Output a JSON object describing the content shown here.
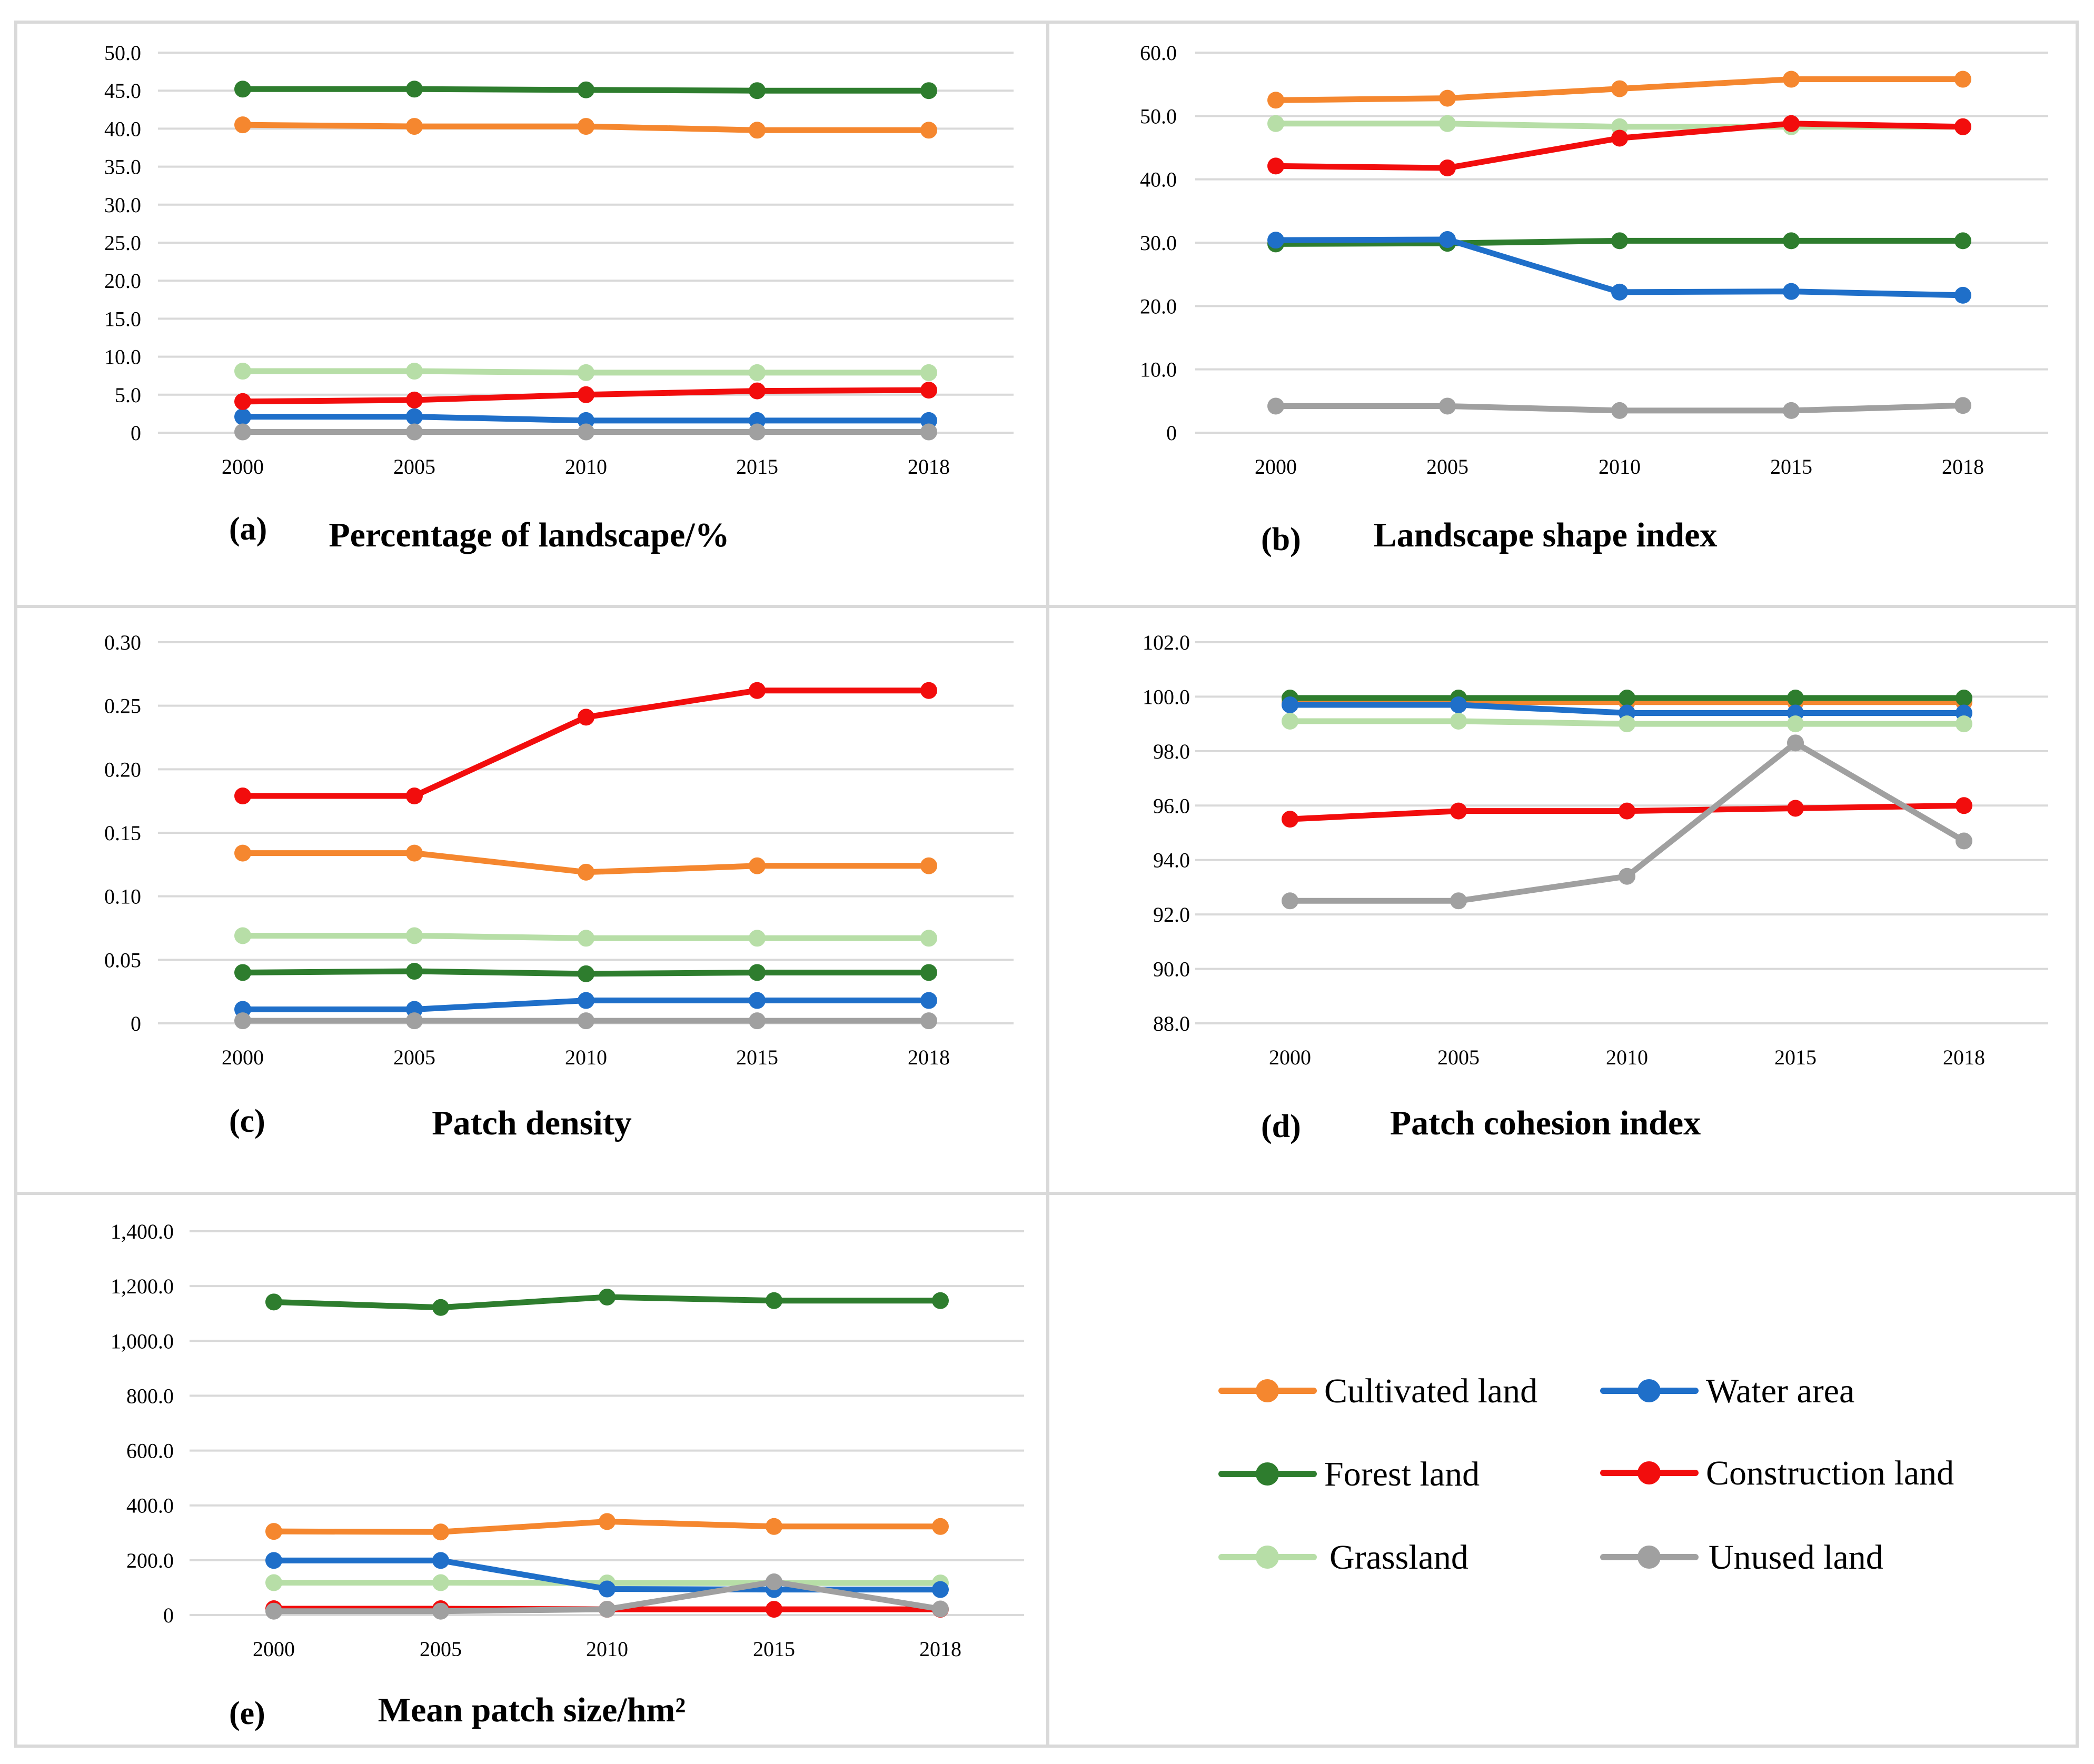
{
  "colors": {
    "cultivated": "#F5872F",
    "forest": "#2E7D2E",
    "grassland": "#B7DEA7",
    "water": "#1F6FC9",
    "construction": "#F20D0D",
    "unused": "#A0A0A0"
  },
  "legend": [
    {
      "key": "cultivated",
      "label": "Cultivated land"
    },
    {
      "key": "water",
      "label": "Water area"
    },
    {
      "key": "forest",
      "label": "Forest land"
    },
    {
      "key": "construction",
      "label": "Construction land"
    },
    {
      "key": "grassland",
      "label": "Grassland"
    },
    {
      "key": "unused",
      "label": "Unused land"
    }
  ],
  "chart_data": [
    {
      "type": "line",
      "panel_label": "(a)",
      "title": "Percentage of landscape/%",
      "categories": [
        "2000",
        "2005",
        "2010",
        "2015",
        "2018"
      ],
      "ylim": [
        0,
        50
      ],
      "yticks": [
        "50.0",
        "45.0",
        "40.0",
        "35.0",
        "30.0",
        "25.0",
        "20.0",
        "15.0",
        "10.0",
        "5.0",
        "0"
      ],
      "series": [
        {
          "key": "cultivated",
          "name": "Cultivated land",
          "values": [
            40.5,
            40.3,
            40.3,
            39.8,
            39.8
          ]
        },
        {
          "key": "forest",
          "name": "Forest land",
          "values": [
            45.2,
            45.2,
            45.1,
            45.0,
            45.0
          ]
        },
        {
          "key": "grassland",
          "name": "Grassland",
          "values": [
            8.1,
            8.1,
            7.9,
            7.9,
            7.9
          ]
        },
        {
          "key": "water",
          "name": "Water area",
          "values": [
            2.1,
            2.1,
            1.6,
            1.6,
            1.6
          ]
        },
        {
          "key": "construction",
          "name": "Construction land",
          "values": [
            4.1,
            4.3,
            5.0,
            5.5,
            5.6
          ]
        },
        {
          "key": "unused",
          "name": "Unused land",
          "values": [
            0.1,
            0.1,
            0.1,
            0.1,
            0.1
          ]
        }
      ]
    },
    {
      "type": "line",
      "panel_label": "(b)",
      "title": "Landscape shape index",
      "categories": [
        "2000",
        "2005",
        "2010",
        "2015",
        "2018"
      ],
      "ylim": [
        0,
        60
      ],
      "yticks": [
        "60.0",
        "50.0",
        "40.0",
        "30.0",
        "20.0",
        "10.0",
        "0"
      ],
      "series": [
        {
          "key": "cultivated",
          "name": "Cultivated land",
          "values": [
            52.5,
            52.8,
            54.3,
            55.8,
            55.8
          ]
        },
        {
          "key": "grassland",
          "name": "Grassland",
          "values": [
            48.8,
            48.8,
            48.3,
            48.3,
            48.3
          ]
        },
        {
          "key": "construction",
          "name": "Construction land",
          "values": [
            42.1,
            41.8,
            46.5,
            48.8,
            48.3
          ]
        },
        {
          "key": "forest",
          "name": "Forest land",
          "values": [
            29.8,
            29.9,
            30.3,
            30.3,
            30.3
          ]
        },
        {
          "key": "water",
          "name": "Water area",
          "values": [
            30.4,
            30.5,
            22.2,
            22.3,
            21.7
          ]
        },
        {
          "key": "unused",
          "name": "Unused land",
          "values": [
            4.2,
            4.2,
            3.5,
            3.5,
            4.3
          ]
        }
      ]
    },
    {
      "type": "line",
      "panel_label": "(c)",
      "title": "Patch density",
      "categories": [
        "2000",
        "2005",
        "2010",
        "2015",
        "2018"
      ],
      "ylim": [
        0,
        0.3
      ],
      "yticks": [
        "0.30",
        "0.25",
        "0.20",
        "0.15",
        "0.10",
        "0.05",
        "0"
      ],
      "series": [
        {
          "key": "construction",
          "name": "Construction land",
          "values": [
            0.179,
            0.179,
            0.241,
            0.262,
            0.262
          ]
        },
        {
          "key": "cultivated",
          "name": "Cultivated land",
          "values": [
            0.134,
            0.134,
            0.119,
            0.124,
            0.124
          ]
        },
        {
          "key": "grassland",
          "name": "Grassland",
          "values": [
            0.069,
            0.069,
            0.067,
            0.067,
            0.067
          ]
        },
        {
          "key": "forest",
          "name": "Forest land",
          "values": [
            0.04,
            0.041,
            0.039,
            0.04,
            0.04
          ]
        },
        {
          "key": "water",
          "name": "Water area",
          "values": [
            0.011,
            0.011,
            0.018,
            0.018,
            0.018
          ]
        },
        {
          "key": "unused",
          "name": "Unused land",
          "values": [
            0.002,
            0.002,
            0.002,
            0.002,
            0.002
          ]
        }
      ]
    },
    {
      "type": "line",
      "panel_label": "(d)",
      "title": "Patch cohesion index",
      "categories": [
        "2000",
        "2005",
        "2010",
        "2015",
        "2018"
      ],
      "ylim": [
        88,
        102
      ],
      "yticks": [
        "102.0",
        "100.0",
        "98.0",
        "96.0",
        "94.0",
        "92.0",
        "90.0",
        "88.0"
      ],
      "series": [
        {
          "key": "cultivated",
          "name": "Cultivated land",
          "values": [
            99.8,
            99.8,
            99.8,
            99.8,
            99.8
          ]
        },
        {
          "key": "forest",
          "name": "Forest land",
          "values": [
            99.95,
            99.95,
            99.95,
            99.95,
            99.95
          ]
        },
        {
          "key": "water",
          "name": "Water area",
          "values": [
            99.7,
            99.7,
            99.4,
            99.4,
            99.4
          ]
        },
        {
          "key": "grassland",
          "name": "Grassland",
          "values": [
            99.1,
            99.1,
            99.0,
            99.0,
            99.0
          ]
        },
        {
          "key": "construction",
          "name": "Construction land",
          "values": [
            95.5,
            95.8,
            95.8,
            95.9,
            96.0
          ]
        },
        {
          "key": "unused",
          "name": "Unused land",
          "values": [
            92.5,
            92.5,
            93.4,
            98.3,
            94.7
          ]
        }
      ]
    },
    {
      "type": "line",
      "panel_label": "(e)",
      "title": "Mean patch size/hm²",
      "categories": [
        "2000",
        "2005",
        "2010",
        "2015",
        "2018"
      ],
      "ylim": [
        0,
        1400
      ],
      "yticks": [
        "1,400.0",
        "1,200.0",
        "1,000.0",
        "800.0",
        "600.0",
        "400.0",
        "200.0",
        "0"
      ],
      "series": [
        {
          "key": "forest",
          "name": "Forest land",
          "values": [
            1142,
            1122,
            1160,
            1147,
            1147
          ]
        },
        {
          "key": "cultivated",
          "name": "Cultivated land",
          "values": [
            305,
            303,
            341,
            323,
            323
          ]
        },
        {
          "key": "grassland",
          "name": "Grassland",
          "values": [
            118,
            118,
            117,
            117,
            117
          ]
        },
        {
          "key": "water",
          "name": "Water area",
          "values": [
            199,
            199,
            95,
            93,
            93
          ]
        },
        {
          "key": "construction",
          "name": "Construction land",
          "values": [
            23,
            23,
            21,
            21,
            21
          ]
        },
        {
          "key": "unused",
          "name": "Unused land",
          "values": [
            14,
            14,
            21,
            121,
            22
          ]
        }
      ]
    }
  ]
}
